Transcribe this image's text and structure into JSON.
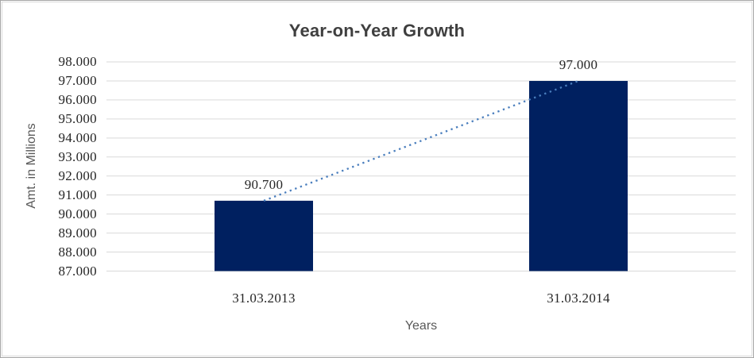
{
  "chart_data": {
    "type": "bar",
    "title": "Year-on-Year Growth",
    "xlabel": "Years",
    "ylabel": "Amt. in Millions",
    "categories": [
      "31.03.2013",
      "31.03.2014"
    ],
    "values": [
      90.7,
      97.0
    ],
    "value_labels": [
      "90.700",
      "97.000"
    ],
    "ylim": [
      87,
      98
    ],
    "ytick_step": 1,
    "ytick_labels": [
      "98.000",
      "97.000",
      "96.000",
      "95.000",
      "94.000",
      "93.000",
      "92.000",
      "91.000",
      "90.000",
      "89.000",
      "88.000",
      "87.000"
    ],
    "grid": true,
    "legend": "none",
    "trendline": {
      "style": "dotted",
      "from_value": 90.7,
      "to_value": 97.0
    },
    "colors": {
      "bar": "#002060",
      "trendline": "#4a7ebd",
      "gridline": "#d9d9d9",
      "title_text": "#3f3f3f",
      "axis_title_text": "#595959",
      "tick_text": "#262626",
      "frame_outer": "#a6a6a6",
      "frame_inner": "#d9d9d9"
    }
  }
}
